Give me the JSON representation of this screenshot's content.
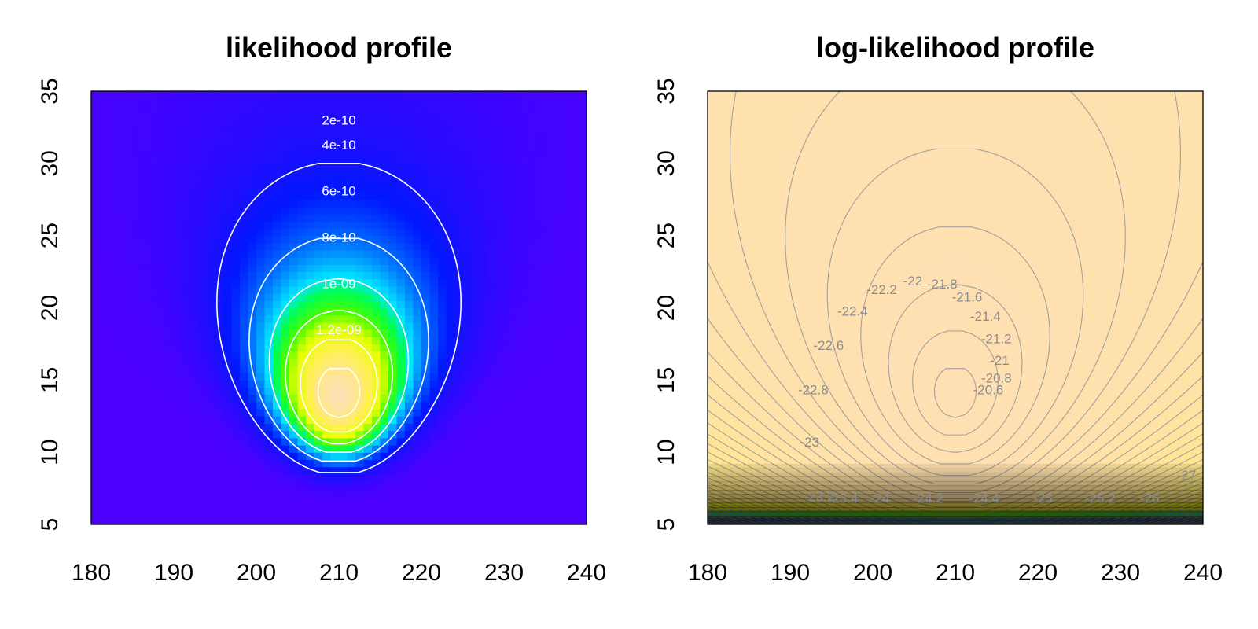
{
  "chart_data": [
    {
      "type": "heatmap",
      "title": "likelihood profile",
      "xlabel": "",
      "ylabel": "",
      "xlim": [
        180,
        240
      ],
      "ylim": [
        5,
        35
      ],
      "x_ticks": [
        180,
        190,
        200,
        210,
        220,
        230,
        240
      ],
      "y_ticks": [
        5,
        10,
        15,
        20,
        25,
        30,
        35
      ],
      "x_tick_labels": [
        "180",
        "190",
        "200",
        "210",
        "220",
        "230",
        "240"
      ],
      "y_tick_labels": [
        "5",
        "10",
        "15",
        "20",
        "25",
        "30",
        "35"
      ],
      "peak": {
        "x": 210,
        "y": 14
      },
      "color_scheme": "topo",
      "contour_color": "#ffffff",
      "contours": [
        {
          "label": "2e-10",
          "level": 2e-10
        },
        {
          "label": "4e-10",
          "level": 4e-10
        },
        {
          "label": "6e-10",
          "level": 6e-10
        },
        {
          "label": "8e-10",
          "level": 8e-10
        },
        {
          "label": "1e-09",
          "level": 1e-09
        },
        {
          "label": "1.2e-09",
          "level": 1.2e-09
        }
      ]
    },
    {
      "type": "heatmap",
      "title": "log-likelihood profile",
      "xlabel": "",
      "ylabel": "",
      "xlim": [
        180,
        240
      ],
      "ylim": [
        5,
        35
      ],
      "x_ticks": [
        180,
        190,
        200,
        210,
        220,
        230,
        240
      ],
      "y_ticks": [
        5,
        10,
        15,
        20,
        25,
        30,
        35
      ],
      "x_tick_labels": [
        "180",
        "190",
        "200",
        "210",
        "220",
        "230",
        "240"
      ],
      "y_tick_labels": [
        "5",
        "10",
        "15",
        "20",
        "25",
        "30",
        "35"
      ],
      "peak": {
        "x": 210,
        "y": 14
      },
      "color_scheme": "topo",
      "contour_color": "#999999",
      "contour_labels": [
        "-20.6",
        "-20.8",
        "-21",
        "-21.2",
        "-21.4",
        "-21.6",
        "-21.8",
        "-22",
        "-22.2",
        "-22.4",
        "-22.6",
        "-22.8",
        "-23",
        "-23.2",
        "-23.4",
        "-24",
        "-24.2",
        "-24.4",
        "-25",
        "-25.2",
        "-26",
        "-27"
      ]
    }
  ]
}
